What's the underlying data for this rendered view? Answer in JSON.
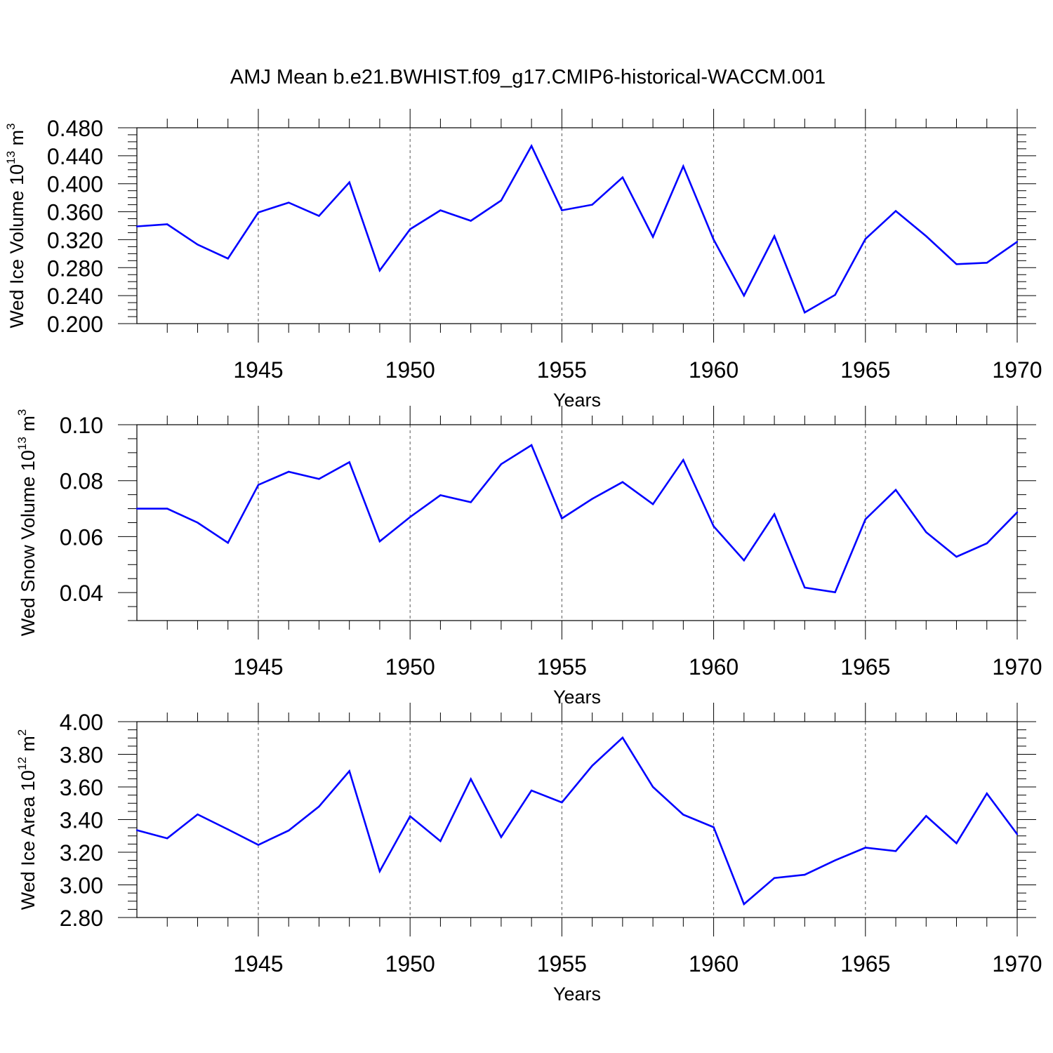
{
  "title": "AMJ Mean b.e21.BWHIST.f09_g17.CMIP6-historical-WACCM.001",
  "colors": {
    "series": "#0000ff",
    "axis": "#000000",
    "grid": "#555555"
  },
  "chart_data": [
    {
      "type": "line",
      "ylabel": {
        "base": "Wed Ice Volume 10",
        "exp": "13",
        "unit": " m",
        "unitExp": "3"
      },
      "xlabel": "Years",
      "xlim": [
        1941,
        1970
      ],
      "xticks": [
        1945,
        1950,
        1955,
        1960,
        1965,
        1970
      ],
      "ylim": [
        0.2,
        0.48
      ],
      "yticks": [
        0.2,
        0.24,
        0.28,
        0.32,
        0.36,
        0.4,
        0.44,
        0.48
      ],
      "ydecimals": 3,
      "yminor": 0.01,
      "x": [
        1941,
        1942,
        1943,
        1944,
        1945,
        1946,
        1947,
        1948,
        1949,
        1950,
        1951,
        1952,
        1953,
        1954,
        1955,
        1956,
        1957,
        1958,
        1959,
        1960,
        1961,
        1962,
        1963,
        1964,
        1965,
        1966,
        1967,
        1968,
        1969,
        1970
      ],
      "values": [
        0.339,
        0.342,
        0.313,
        0.293,
        0.359,
        0.373,
        0.354,
        0.402,
        0.276,
        0.335,
        0.362,
        0.347,
        0.376,
        0.454,
        0.362,
        0.37,
        0.409,
        0.324,
        0.425,
        0.32,
        0.24,
        0.325,
        0.216,
        0.241,
        0.321,
        0.361,
        0.325,
        0.285,
        0.287,
        0.317
      ]
    },
    {
      "type": "line",
      "ylabel": {
        "base": "Wed Snow Volume 10",
        "exp": "13",
        "unit": " m",
        "unitExp": "3"
      },
      "xlabel": "Years",
      "xlim": [
        1941,
        1970
      ],
      "xticks": [
        1945,
        1950,
        1955,
        1960,
        1965,
        1970
      ],
      "ylim": [
        0.03,
        0.1
      ],
      "yticks": [
        0.04,
        0.06,
        0.08,
        0.1
      ],
      "ydecimals": 2,
      "yminor": 0.005,
      "x": [
        1941,
        1942,
        1943,
        1944,
        1945,
        1946,
        1947,
        1948,
        1949,
        1950,
        1951,
        1952,
        1953,
        1954,
        1955,
        1956,
        1957,
        1958,
        1959,
        1960,
        1961,
        1962,
        1963,
        1964,
        1965,
        1966,
        1967,
        1968,
        1969,
        1970
      ],
      "values": [
        0.07,
        0.07,
        0.065,
        0.0578,
        0.0785,
        0.0832,
        0.0806,
        0.0866,
        0.0583,
        0.067,
        0.0748,
        0.0723,
        0.0859,
        0.0927,
        0.0665,
        0.0735,
        0.0795,
        0.0716,
        0.0874,
        0.0637,
        0.0515,
        0.068,
        0.0418,
        0.0401,
        0.0662,
        0.0767,
        0.0616,
        0.0528,
        0.0576,
        0.0687
      ]
    },
    {
      "type": "line",
      "ylabel": {
        "base": "Wed Ice Area 10",
        "exp": "12",
        "unit": " m",
        "unitExp": "2"
      },
      "xlabel": "Years",
      "xlim": [
        1941,
        1970
      ],
      "xticks": [
        1945,
        1950,
        1955,
        1960,
        1965,
        1970
      ],
      "ylim": [
        2.8,
        4.0
      ],
      "yticks": [
        2.8,
        3.0,
        3.2,
        3.4,
        3.6,
        3.8,
        4.0
      ],
      "ydecimals": 2,
      "yminor": 0.05,
      "x": [
        1941,
        1942,
        1943,
        1944,
        1945,
        1946,
        1947,
        1948,
        1949,
        1950,
        1951,
        1952,
        1953,
        1954,
        1955,
        1956,
        1957,
        1958,
        1959,
        1960,
        1961,
        1962,
        1963,
        1964,
        1965,
        1966,
        1967,
        1968,
        1969,
        1970
      ],
      "values": [
        3.335,
        3.285,
        3.432,
        3.34,
        3.245,
        3.333,
        3.48,
        3.697,
        3.083,
        3.42,
        3.268,
        3.648,
        3.293,
        3.578,
        3.505,
        3.73,
        3.902,
        3.6,
        3.43,
        3.353,
        2.882,
        3.042,
        3.062,
        3.15,
        3.228,
        3.207,
        3.422,
        3.255,
        3.56,
        3.31
      ]
    }
  ]
}
